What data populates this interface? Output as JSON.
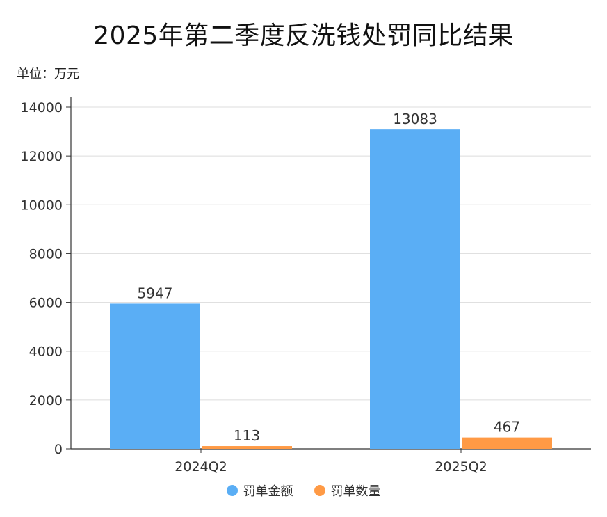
{
  "title": "2025年第二季度反洗钱处罚同比结果",
  "unit_label": "单位：万元",
  "chart_data": {
    "type": "bar",
    "title": "2025年第二季度反洗钱处罚同比结果",
    "categories": [
      "2024Q2",
      "2025Q2"
    ],
    "series": [
      {
        "name": "罚单金额",
        "values": [
          5947,
          13083
        ],
        "color": "#5aaef5"
      },
      {
        "name": "罚单数量",
        "values": [
          113,
          467
        ],
        "color": "#ff9a45"
      }
    ],
    "ylim": [
      0,
      14000
    ],
    "yticks": [
      0,
      2000,
      4000,
      6000,
      8000,
      10000,
      12000,
      14000
    ],
    "grid": true,
    "legend_position": "bottom-center"
  }
}
